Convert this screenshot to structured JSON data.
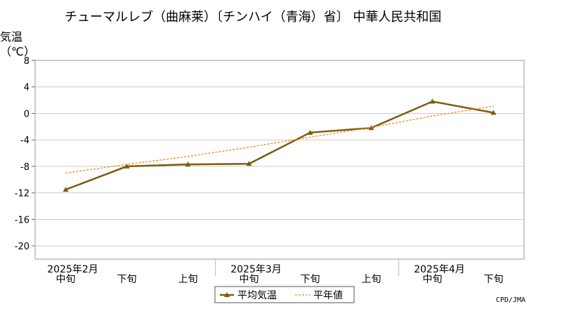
{
  "chart_data": {
    "type": "line",
    "title": "チューマルレブ（曲麻莱）〔チンハイ（青海）省〕 中華人民共和国",
    "ylabel_line1": "気温",
    "ylabel_line2": "（℃）",
    "ylim": [
      -22,
      8
    ],
    "yticks": [
      8,
      4,
      0,
      -4,
      -8,
      -12,
      -16,
      -20
    ],
    "grid": true,
    "x_periods": [
      "中旬",
      "下旬",
      "上旬",
      "中旬",
      "下旬",
      "上旬",
      "中旬",
      "下旬"
    ],
    "x_months": [
      {
        "label": "2025年2月",
        "index": 0
      },
      {
        "label": "2025年3月",
        "index": 3
      },
      {
        "label": "2025年4月",
        "index": 6
      }
    ],
    "series": [
      {
        "name": "平均気温",
        "color": "#7b5c10",
        "style": "solid",
        "marker": "triangle",
        "values": [
          -11.5,
          -8.0,
          -7.7,
          -7.6,
          -2.9,
          -2.2,
          1.8,
          0.1
        ]
      },
      {
        "name": "平年値",
        "color": "#f08a1e",
        "style": "dashed",
        "marker": "none",
        "values": [
          -9.0,
          -7.7,
          -6.5,
          -5.1,
          -3.6,
          -2.1,
          -0.4,
          1.1
        ]
      }
    ],
    "legend_position": "bottom",
    "credit": "CPD/JMA"
  }
}
